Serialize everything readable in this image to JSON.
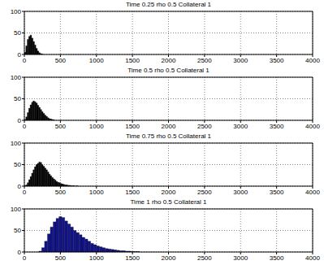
{
  "chart_data": [
    {
      "type": "histogram",
      "title": "Time 0.25 rho 0.5 Collateral 1",
      "color": "#000000",
      "bins": [
        0,
        20,
        40,
        60,
        80,
        100,
        120,
        140,
        160,
        180,
        200,
        220,
        240,
        260
      ],
      "counts": [
        5,
        20,
        35,
        42,
        45,
        38,
        30,
        22,
        14,
        8,
        4,
        2,
        1
      ],
      "xlim": [
        0,
        4000
      ],
      "xticks": [
        0,
        500,
        1000,
        1500,
        2000,
        2500,
        3000,
        3500,
        4000
      ],
      "ylim": [
        0,
        100
      ],
      "yticks": [
        0,
        50,
        100
      ],
      "grid": true
    },
    {
      "type": "histogram",
      "title": "Time 0.5 rho 0.5 Collateral 1",
      "color": "#000000",
      "bins": [
        0,
        20,
        40,
        60,
        80,
        100,
        120,
        140,
        160,
        180,
        200,
        220,
        240,
        260,
        280,
        300,
        320,
        340,
        360,
        380,
        400,
        420
      ],
      "counts": [
        2,
        8,
        18,
        28,
        36,
        42,
        45,
        43,
        40,
        35,
        30,
        25,
        20,
        16,
        12,
        9,
        6,
        4,
        3,
        2,
        1
      ],
      "xlim": [
        0,
        4000
      ],
      "xticks": [
        0,
        500,
        1000,
        1500,
        2000,
        2500,
        3000,
        3500,
        4000
      ],
      "ylim": [
        0,
        100
      ],
      "yticks": [
        0,
        50,
        100
      ],
      "grid": true
    },
    {
      "type": "histogram",
      "title": "Time 0.75 rho 0.5 Collateral 1",
      "color": "#000000",
      "bins": [
        0,
        20,
        40,
        60,
        80,
        100,
        120,
        140,
        160,
        180,
        200,
        220,
        240,
        260,
        280,
        300,
        320,
        340,
        360,
        380,
        400,
        420,
        440,
        460,
        480,
        500,
        520,
        540,
        560,
        580,
        600,
        620,
        640,
        660,
        680,
        700,
        720,
        740,
        760
      ],
      "counts": [
        1,
        3,
        8,
        15,
        22,
        30,
        38,
        45,
        50,
        53,
        56,
        55,
        50,
        46,
        42,
        38,
        33,
        28,
        24,
        20,
        17,
        14,
        11,
        9,
        8,
        6,
        5,
        4,
        3,
        3,
        2,
        2,
        1,
        1,
        1,
        0,
        1,
        0
      ],
      "xlim": [
        0,
        4000
      ],
      "xticks": [
        0,
        500,
        1000,
        1500,
        2000,
        2500,
        3000,
        3500,
        4000
      ],
      "ylim": [
        0,
        100
      ],
      "yticks": [
        0,
        50,
        100
      ],
      "grid": true
    },
    {
      "type": "histogram",
      "title": "Time 1 rho 0.5 Collateral 1",
      "color": "#13138a",
      "bins": [
        200,
        240,
        280,
        320,
        360,
        400,
        440,
        480,
        520,
        560,
        600,
        640,
        680,
        720,
        760,
        800,
        840,
        880,
        920,
        960,
        1000,
        1040,
        1080,
        1120,
        1160,
        1200,
        1240,
        1280,
        1320,
        1360,
        1400,
        1440,
        1480,
        1520,
        1560,
        1600
      ],
      "counts": [
        2,
        10,
        25,
        42,
        58,
        70,
        78,
        82,
        80,
        72,
        65,
        58,
        50,
        45,
        40,
        34,
        30,
        25,
        20,
        17,
        14,
        12,
        10,
        8,
        7,
        6,
        5,
        4,
        3,
        3,
        2,
        2,
        1,
        1,
        1
      ],
      "xlim": [
        0,
        4000
      ],
      "xticks": [
        0,
        500,
        1000,
        1500,
        2000,
        2500,
        3000,
        3500,
        4000
      ],
      "ylim": [
        0,
        100
      ],
      "yticks": [
        0,
        50,
        100
      ],
      "grid": true
    }
  ]
}
